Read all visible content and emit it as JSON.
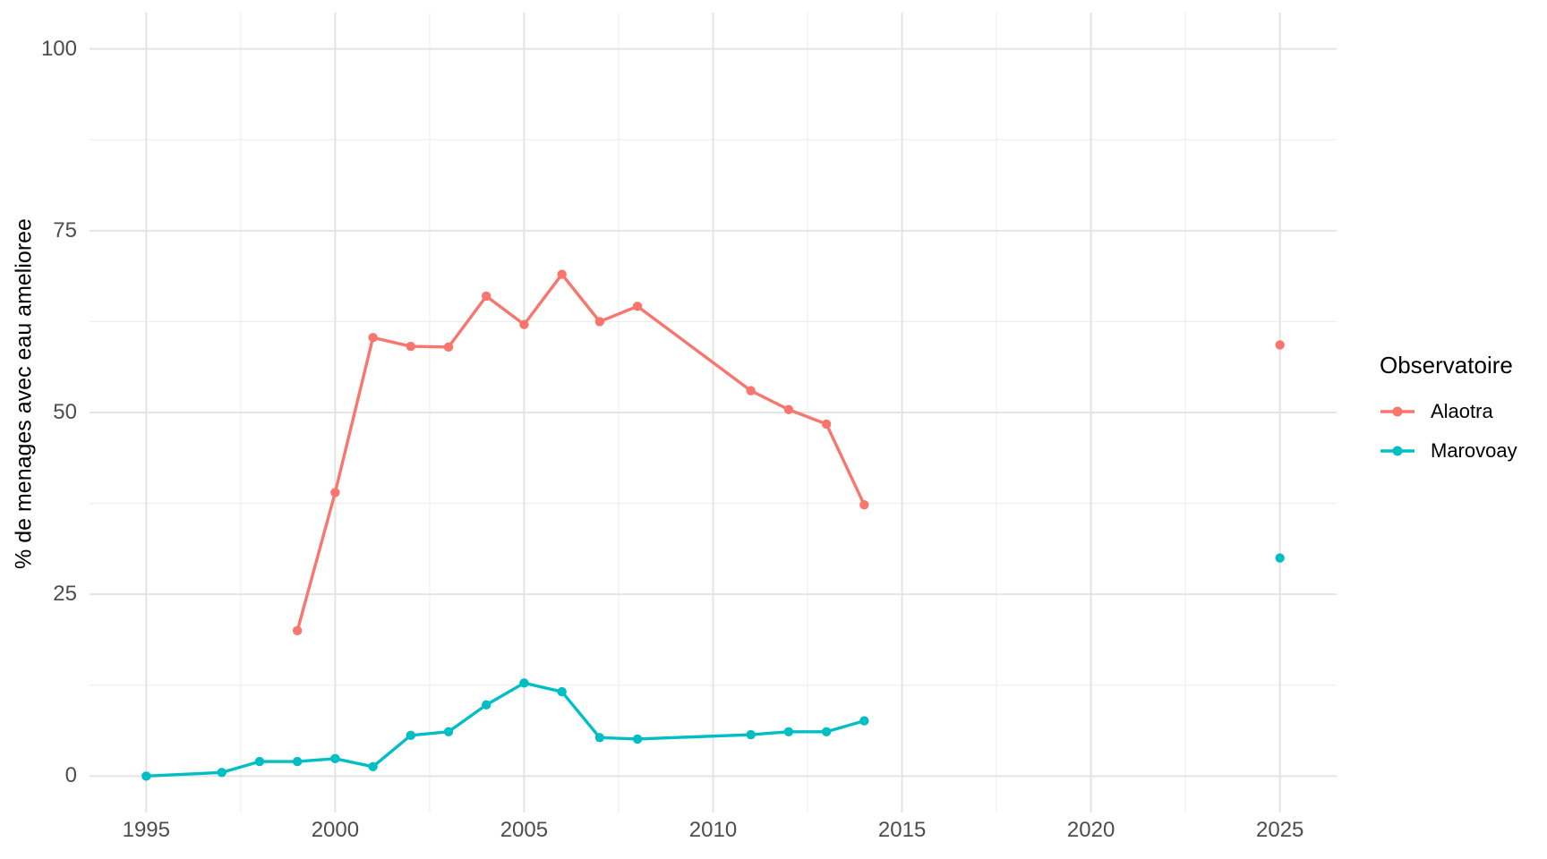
{
  "chart_data": {
    "type": "line",
    "title": "",
    "xlabel": "",
    "ylabel": "% de menages avec eau amelioree",
    "x_ticks": [
      1995,
      2000,
      2005,
      2010,
      2015,
      2020,
      2025
    ],
    "y_ticks": [
      0,
      25,
      50,
      75,
      100
    ],
    "x_domain": [
      1993.5,
      2026.5
    ],
    "y_domain": [
      -5,
      105
    ],
    "grid": "major and minor, light gray on white",
    "legend": {
      "title": "Observatoire",
      "position": "right",
      "entries": [
        {
          "label": "Alaotra",
          "color": "#F8766D"
        },
        {
          "label": "Marovoay",
          "color": "#00BFC4"
        }
      ]
    },
    "series": [
      {
        "name": "Alaotra",
        "color": "#F8766D",
        "x": [
          1999,
          2000,
          2001,
          2002,
          2003,
          2004,
          2005,
          2006,
          2007,
          2008,
          2011,
          2012,
          2013,
          2014
        ],
        "y": [
          20,
          39,
          60.3,
          59.1,
          59,
          66,
          62.1,
          69,
          62.5,
          64.6,
          53,
          50.4,
          48.4,
          37.3
        ],
        "isolated": {
          "x": 2025,
          "y": 59.3
        }
      },
      {
        "name": "Marovoay",
        "color": "#00BFC4",
        "x": [
          1995,
          1997,
          1998,
          1999,
          2000,
          2001,
          2002,
          2003,
          2004,
          2005,
          2006,
          2007,
          2008,
          2011,
          2012,
          2013,
          2014
        ],
        "y": [
          0,
          0.5,
          2,
          2,
          2.4,
          1.3,
          5.6,
          6.1,
          9.8,
          12.8,
          11.6,
          5.3,
          5.1,
          5.7,
          6.1,
          6.1,
          7.6
        ],
        "isolated": {
          "x": 2025,
          "y": 30
        }
      }
    ],
    "colors": {
      "background": "#FFFFFF",
      "grid_major": "#E4E4E4",
      "grid_minor": "#EFEFEF",
      "axis_text": "#4D4D4D",
      "axis_title": "#000000"
    }
  }
}
